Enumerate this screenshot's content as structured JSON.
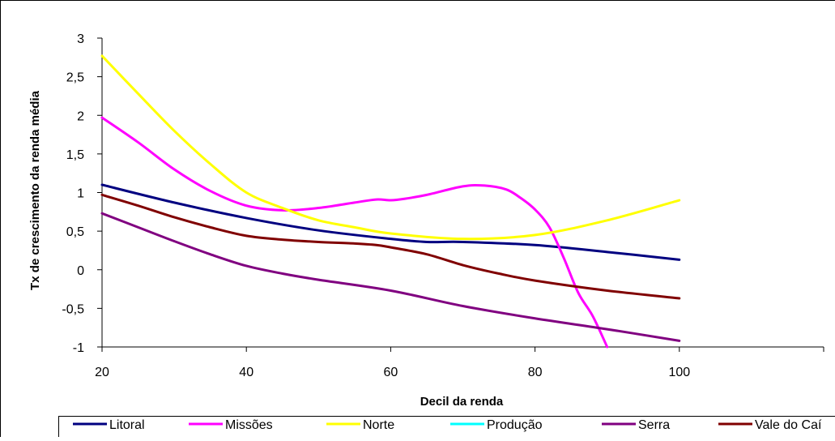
{
  "chart_data": {
    "type": "line",
    "title": "",
    "xlabel": "Decil da renda",
    "ylabel": "Tx de crescimento da renda média",
    "xlim": [
      20,
      120
    ],
    "ylim": [
      -1,
      3
    ],
    "x_ticks": [
      "20",
      "40",
      "60",
      "80",
      "100"
    ],
    "y_ticks": [
      "3",
      "2,5",
      "2",
      "1,5",
      "1",
      "0,5",
      "0",
      "-0,5",
      "-1"
    ],
    "grid": false,
    "legend_position": "bottom",
    "series": [
      {
        "name": "Litoral",
        "color": "#000080",
        "points": [
          [
            20,
            1.1
          ],
          [
            30,
            0.87
          ],
          [
            40,
            0.67
          ],
          [
            50,
            0.51
          ],
          [
            60,
            0.4
          ],
          [
            65,
            0.36
          ],
          [
            70,
            0.36
          ],
          [
            80,
            0.32
          ],
          [
            90,
            0.23
          ],
          [
            100,
            0.13
          ]
        ]
      },
      {
        "name": "Missões",
        "color": "#ff00ff",
        "points": [
          [
            20,
            1.97
          ],
          [
            25,
            1.65
          ],
          [
            30,
            1.3
          ],
          [
            35,
            1.02
          ],
          [
            40,
            0.83
          ],
          [
            45,
            0.77
          ],
          [
            50,
            0.8
          ],
          [
            55,
            0.87
          ],
          [
            58,
            0.91
          ],
          [
            60,
            0.9
          ],
          [
            62,
            0.92
          ],
          [
            65,
            0.97
          ],
          [
            70,
            1.08
          ],
          [
            73,
            1.09
          ],
          [
            76,
            1.04
          ],
          [
            78,
            0.93
          ],
          [
            80,
            0.78
          ],
          [
            82,
            0.55
          ],
          [
            84,
            0.15
          ],
          [
            86,
            -0.3
          ],
          [
            88,
            -0.6
          ],
          [
            90,
            -1.0
          ]
        ]
      },
      {
        "name": "Norte",
        "color": "#ffff00",
        "points": [
          [
            20,
            2.77
          ],
          [
            25,
            2.28
          ],
          [
            30,
            1.8
          ],
          [
            35,
            1.37
          ],
          [
            40,
            1.0
          ],
          [
            45,
            0.8
          ],
          [
            50,
            0.64
          ],
          [
            55,
            0.55
          ],
          [
            60,
            0.47
          ],
          [
            70,
            0.4
          ],
          [
            80,
            0.45
          ],
          [
            90,
            0.64
          ],
          [
            100,
            0.9
          ]
        ]
      },
      {
        "name": "Produção",
        "color": "#00ffff",
        "points": []
      },
      {
        "name": "Serra",
        "color": "#800080",
        "points": [
          [
            20,
            0.73
          ],
          [
            25,
            0.55
          ],
          [
            30,
            0.37
          ],
          [
            35,
            0.2
          ],
          [
            40,
            0.05
          ],
          [
            45,
            -0.05
          ],
          [
            50,
            -0.13
          ],
          [
            60,
            -0.27
          ],
          [
            70,
            -0.47
          ],
          [
            80,
            -0.63
          ],
          [
            90,
            -0.77
          ],
          [
            100,
            -0.92
          ]
        ]
      },
      {
        "name": "Vale do Caí",
        "color": "#800000",
        "points": [
          [
            20,
            0.97
          ],
          [
            25,
            0.83
          ],
          [
            30,
            0.68
          ],
          [
            35,
            0.55
          ],
          [
            40,
            0.44
          ],
          [
            45,
            0.39
          ],
          [
            50,
            0.36
          ],
          [
            55,
            0.34
          ],
          [
            58,
            0.32
          ],
          [
            60,
            0.29
          ],
          [
            65,
            0.2
          ],
          [
            70,
            0.06
          ],
          [
            75,
            -0.05
          ],
          [
            80,
            -0.14
          ],
          [
            90,
            -0.27
          ],
          [
            100,
            -0.37
          ]
        ]
      }
    ]
  }
}
